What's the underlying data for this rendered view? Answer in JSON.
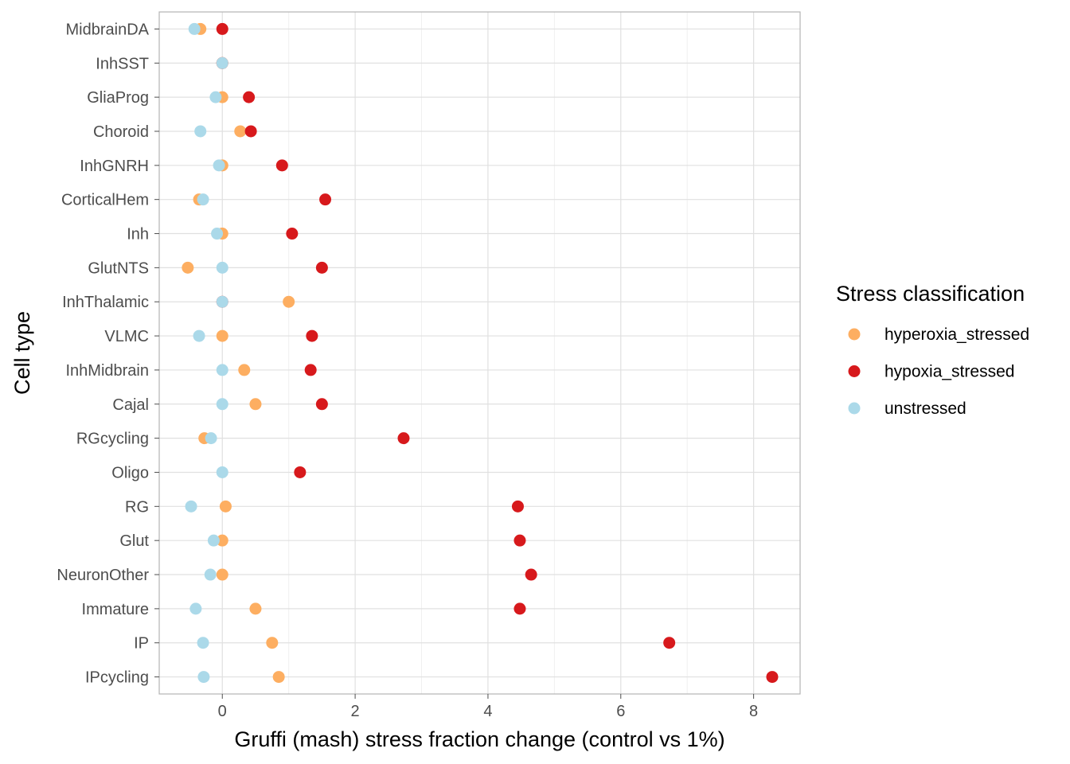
{
  "chart_data": {
    "type": "scatter",
    "title": "",
    "xlabel": "Gruffi (mash) stress fraction change (control vs 1%)",
    "ylabel": "Cell type",
    "xlim": [
      -0.95,
      8.7
    ],
    "x_ticks": [
      0,
      2,
      4,
      6,
      8
    ],
    "x_tick_labels": [
      "0",
      "2",
      "4",
      "6",
      "8"
    ],
    "grid": true,
    "legend_position": "right",
    "legend_title": "Stress classification",
    "categories": [
      "MidbrainDA",
      "InhSST",
      "GliaProg",
      "Choroid",
      "InhGNRH",
      "CorticalHem",
      "Inh",
      "GlutNTS",
      "InhThalamic",
      "VLMC",
      "InhMidbrain",
      "Cajal",
      "RGcycling",
      "Oligo",
      "RG",
      "Glut",
      "NeuronOther",
      "Immature",
      "IP",
      "IPcycling"
    ],
    "series": [
      {
        "name": "hyperoxia_stressed",
        "color": "#FDAE61",
        "values": [
          -0.33,
          0.0,
          0.0,
          0.27,
          0.0,
          -0.35,
          0.0,
          -0.52,
          1.0,
          0.0,
          0.33,
          0.5,
          -0.27,
          null,
          0.05,
          0.0,
          0.0,
          0.5,
          0.75,
          0.85
        ]
      },
      {
        "name": "hypoxia_stressed",
        "color": "#D7191C",
        "values": [
          0.0,
          0.0,
          0.4,
          0.43,
          0.9,
          1.55,
          1.05,
          1.5,
          0.0,
          1.35,
          1.33,
          1.5,
          2.73,
          1.17,
          4.45,
          4.48,
          4.65,
          4.48,
          6.73,
          8.28
        ]
      },
      {
        "name": "unstressed",
        "color": "#ABD9E9",
        "values": [
          -0.42,
          0.0,
          -0.1,
          -0.33,
          -0.05,
          -0.29,
          -0.08,
          0.0,
          0.0,
          -0.35,
          0.0,
          0.0,
          -0.17,
          0.0,
          -0.47,
          -0.13,
          -0.18,
          -0.4,
          -0.29,
          -0.28
        ]
      }
    ]
  }
}
